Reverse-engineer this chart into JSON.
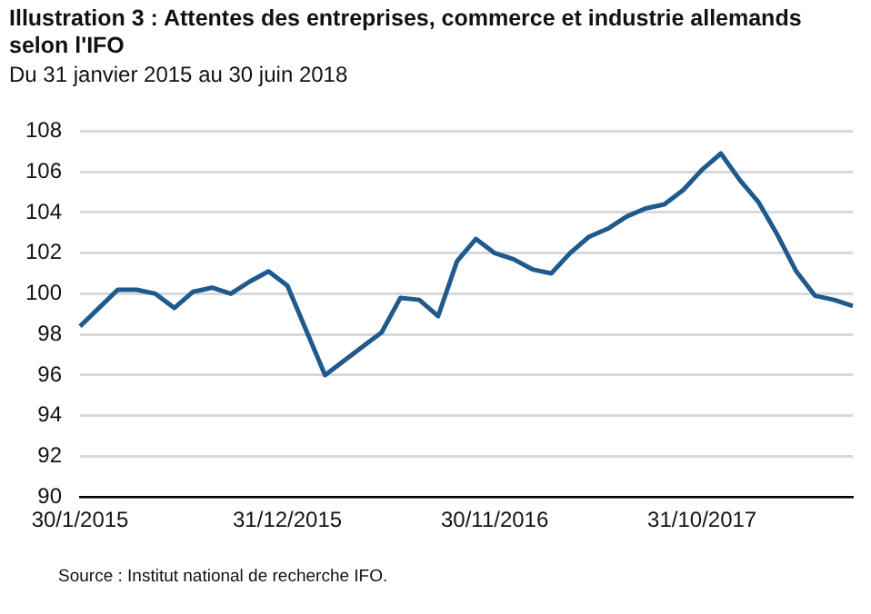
{
  "chart_data": {
    "type": "line",
    "title": "Illustration 3 : Attentes des entreprises, commerce et industrie allemands selon l'IFO",
    "subtitle": "Du 31 janvier 2015 au 30 juin 2018",
    "categories": [
      "30/1/2015",
      null,
      null,
      null,
      null,
      null,
      null,
      null,
      null,
      null,
      null,
      "31/12/2015",
      null,
      null,
      null,
      null,
      null,
      null,
      null,
      null,
      null,
      null,
      "30/11/2016",
      null,
      null,
      null,
      null,
      null,
      null,
      null,
      null,
      null,
      null,
      "31/10/2017",
      null,
      null,
      null,
      null,
      null,
      null,
      null,
      null
    ],
    "series": [
      {
        "color": "#1f5a8c",
        "values": [
          98.4,
          99.3,
          100.2,
          100.2,
          100.0,
          99.3,
          100.1,
          100.3,
          100.0,
          100.6,
          101.1,
          100.4,
          98.2,
          96.0,
          96.7,
          97.4,
          98.1,
          99.8,
          99.7,
          98.9,
          101.6,
          102.7,
          102.0,
          101.7,
          101.2,
          101.0,
          102.0,
          102.8,
          103.2,
          103.8,
          104.2,
          104.4,
          105.1,
          106.1,
          106.9,
          105.6,
          104.5,
          102.9,
          101.1,
          99.9,
          99.7,
          99.4
        ]
      }
    ],
    "ylim": [
      90,
      108
    ],
    "yticks": [
      90,
      92,
      94,
      96,
      98,
      100,
      102,
      104,
      106,
      108
    ],
    "grid": "y",
    "legend": false,
    "marker": "none",
    "line_style": "solid",
    "annotations": [
      "Source : Institut national de recherche IFO."
    ]
  }
}
